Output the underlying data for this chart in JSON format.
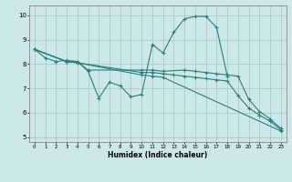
{
  "title": "",
  "xlabel": "Humidex (Indice chaleur)",
  "xlim": [
    -0.5,
    23.5
  ],
  "ylim": [
    4.8,
    10.4
  ],
  "bg_color": "#cce8e8",
  "grid_color": "#aacccc",
  "line_color": "#2a7f7f",
  "xticks": [
    0,
    1,
    2,
    3,
    4,
    5,
    6,
    7,
    8,
    9,
    10,
    11,
    12,
    13,
    14,
    15,
    16,
    17,
    18,
    19,
    20,
    21,
    22,
    23
  ],
  "yticks": [
    5,
    6,
    7,
    8,
    9,
    10
  ],
  "lines": [
    {
      "x": [
        0,
        1,
        2,
        3,
        4,
        5,
        6,
        7,
        8,
        9,
        10,
        11,
        12,
        13,
        14,
        15,
        16,
        17,
        18
      ],
      "y": [
        8.6,
        8.25,
        8.1,
        8.15,
        8.1,
        7.7,
        6.6,
        7.25,
        7.1,
        6.65,
        6.75,
        8.8,
        8.45,
        9.3,
        9.85,
        9.95,
        9.95,
        9.5,
        7.5
      ]
    },
    {
      "x": [
        0,
        3,
        4,
        5,
        10,
        11,
        12,
        14,
        15,
        16,
        17,
        18,
        19,
        20,
        21,
        22,
        23
      ],
      "y": [
        8.6,
        8.1,
        8.1,
        7.75,
        7.75,
        7.75,
        7.7,
        7.75,
        7.7,
        7.65,
        7.6,
        7.55,
        7.5,
        6.55,
        6.05,
        5.75,
        5.35
      ]
    },
    {
      "x": [
        0,
        3,
        4,
        10,
        11,
        12,
        13,
        14,
        15,
        16,
        17,
        18,
        19,
        20,
        21,
        22,
        23
      ],
      "y": [
        8.6,
        8.1,
        8.05,
        7.65,
        7.65,
        7.6,
        7.55,
        7.5,
        7.45,
        7.4,
        7.35,
        7.3,
        6.7,
        6.2,
        5.9,
        5.65,
        5.3
      ]
    },
    {
      "x": [
        0,
        3,
        4,
        10,
        11,
        12,
        23
      ],
      "y": [
        8.6,
        8.1,
        8.05,
        7.55,
        7.5,
        7.45,
        5.25
      ]
    }
  ]
}
